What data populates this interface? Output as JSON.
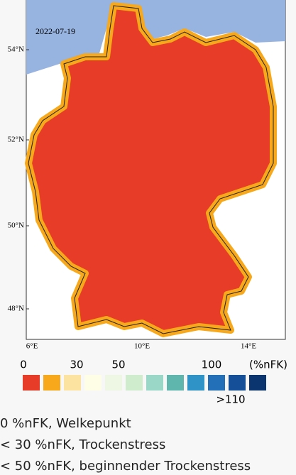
{
  "map": {
    "date": "2022-07-19",
    "lat_labels": [
      "54°N",
      "52°N",
      "50°N",
      "48°N"
    ],
    "lon_labels": [
      "6°E",
      "10°E",
      "14°E"
    ]
  },
  "legend": {
    "labels": [
      "0",
      "30",
      "50",
      "100",
      "(%nFK)",
      ">110"
    ],
    "colors": [
      "#e63c28",
      "#f7a81b",
      "#fde3a0",
      "#fefde6",
      "#eef6e4",
      "#cfeccc",
      "#9ad7c7",
      "#5fb6ad",
      "#2f93c8",
      "#2470b8",
      "#144f98",
      "#0b356e"
    ]
  },
  "notes": [
    "0 %nFK, Welkepunkt",
    "< 30 %nFK, Trockenstress",
    "< 50 %nFK, beginnender Trockenstress"
  ]
}
